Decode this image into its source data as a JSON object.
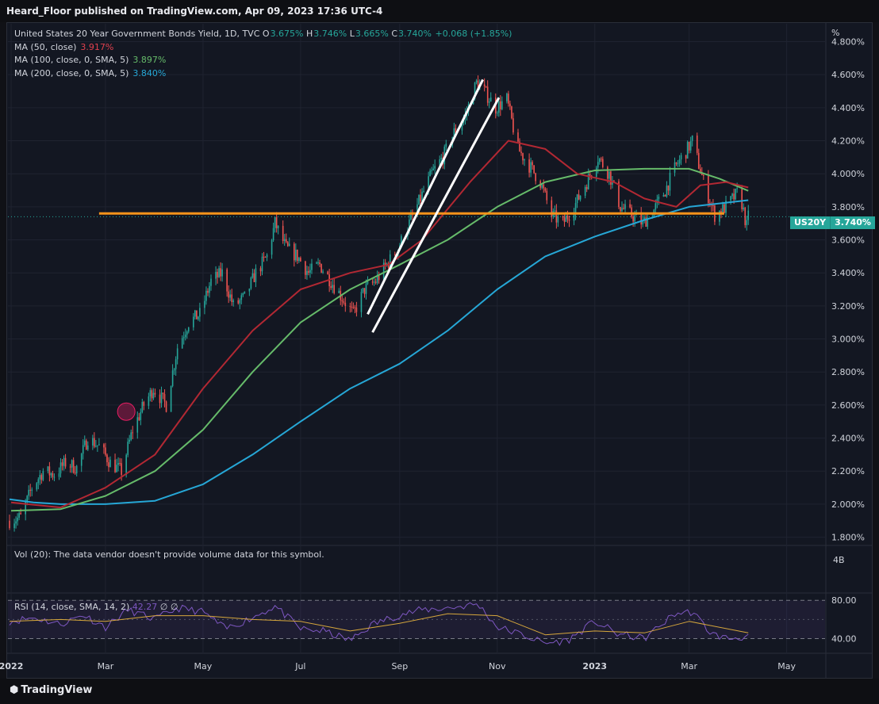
{
  "publisher_line": "Heard_Floor published on TradingView.com, Apr 09, 2023 17:36 UTC-4",
  "legend": {
    "title": "United States 20 Year Government Bonds Yield, 1D, TVC",
    "ohlc_open_label": "O",
    "ohlc_open": "3.675%",
    "ohlc_high_label": "H",
    "ohlc_high": "3.746%",
    "ohlc_low_label": "L",
    "ohlc_low": "3.665%",
    "ohlc_close_label": "C",
    "ohlc_close": "3.740%",
    "change": "+0.068 (+1.85%)",
    "ma50_label": "MA (50, close)",
    "ma50_value": "3.917%",
    "ma100_label": "MA (100, close, 0, SMA, 5)",
    "ma100_value": "3.897%",
    "ma200_label": "MA (200, close, 0, SMA, 5)",
    "ma200_value": "3.840%"
  },
  "volume_pane": {
    "label": "Vol (20): The data vendor doesn't provide volume data for this symbol.",
    "scale": "4B"
  },
  "rsi_pane": {
    "label": "RSI (14, close, SMA, 14, 2)",
    "value": "42.27",
    "extra": "∅ ∅",
    "levels": [
      "80.00",
      "40.00"
    ]
  },
  "price_badge": {
    "symbol": "US20Y",
    "price": "3.740%"
  },
  "footer": {
    "brand": "TradingView",
    "logo_icon": "tradingview-logo-icon"
  },
  "colors": {
    "up": "#26a69a",
    "down": "#ef5350",
    "ma50": "#b22833",
    "ma100": "#66bb6a",
    "ma200": "#26a7d6",
    "rsi": "#7e57c2",
    "support": "#f7931a",
    "channel": "#ffffff"
  },
  "chart_data": {
    "type": "candlestick",
    "title": "United States 20 Year Government Bonds Yield, 1D, TVC",
    "y_unit": "%",
    "y_ticks": [
      "4.800%",
      "4.600%",
      "4.400%",
      "4.200%",
      "4.000%",
      "3.800%",
      "3.600%",
      "3.400%",
      "3.200%",
      "3.000%",
      "2.800%",
      "2.600%",
      "2.400%",
      "2.200%",
      "2.000%",
      "1.800%"
    ],
    "ylim": [
      1.75,
      4.86
    ],
    "x_ticks": [
      "2022",
      "Mar",
      "May",
      "Jul",
      "Sep",
      "Nov",
      "2023",
      "Mar",
      "May"
    ],
    "x_tick_dates": [
      "2022-01-01",
      "2022-03-01",
      "2022-05-01",
      "2022-07-01",
      "2022-09-01",
      "2022-11-01",
      "2023-01-01",
      "2023-03-01",
      "2023-05-01"
    ],
    "x_range": [
      "2021-12-30",
      "2023-05-25"
    ],
    "last_close": 3.74,
    "price_path": [
      [
        "2021-12-31",
        1.9
      ],
      [
        "2022-01-07",
        1.92
      ],
      [
        "2022-01-14",
        2.1
      ],
      [
        "2022-01-21",
        2.2
      ],
      [
        "2022-01-28",
        2.18
      ],
      [
        "2022-02-04",
        2.25
      ],
      [
        "2022-02-11",
        2.22
      ],
      [
        "2022-02-18",
        2.4
      ],
      [
        "2022-02-25",
        2.35
      ],
      [
        "2022-03-04",
        2.25
      ],
      [
        "2022-03-11",
        2.2
      ],
      [
        "2022-03-18",
        2.45
      ],
      [
        "2022-03-25",
        2.6
      ],
      [
        "2022-03-31",
        2.7
      ],
      [
        "2022-04-08",
        2.6
      ],
      [
        "2022-04-15",
        2.95
      ],
      [
        "2022-04-22",
        3.1
      ],
      [
        "2022-04-29",
        3.15
      ],
      [
        "2022-05-06",
        3.35
      ],
      [
        "2022-05-13",
        3.4
      ],
      [
        "2022-05-20",
        3.2
      ],
      [
        "2022-05-27",
        3.25
      ],
      [
        "2022-06-03",
        3.4
      ],
      [
        "2022-06-10",
        3.5
      ],
      [
        "2022-06-15",
        3.7
      ],
      [
        "2022-06-22",
        3.55
      ],
      [
        "2022-06-29",
        3.5
      ],
      [
        "2022-07-06",
        3.4
      ],
      [
        "2022-07-13",
        3.45
      ],
      [
        "2022-07-20",
        3.35
      ],
      [
        "2022-07-27",
        3.25
      ],
      [
        "2022-08-03",
        3.15
      ],
      [
        "2022-08-10",
        3.3
      ],
      [
        "2022-08-17",
        3.35
      ],
      [
        "2022-08-24",
        3.45
      ],
      [
        "2022-08-31",
        3.55
      ],
      [
        "2022-09-07",
        3.7
      ],
      [
        "2022-09-14",
        3.85
      ],
      [
        "2022-09-21",
        4.0
      ],
      [
        "2022-09-28",
        4.1
      ],
      [
        "2022-10-05",
        4.25
      ],
      [
        "2022-10-12",
        4.35
      ],
      [
        "2022-10-19",
        4.55
      ],
      [
        "2022-10-24",
        4.5
      ],
      [
        "2022-10-31",
        4.4
      ],
      [
        "2022-11-07",
        4.45
      ],
      [
        "2022-11-14",
        4.15
      ],
      [
        "2022-11-21",
        4.05
      ],
      [
        "2022-11-28",
        3.95
      ],
      [
        "2022-12-05",
        3.75
      ],
      [
        "2022-12-12",
        3.7
      ],
      [
        "2022-12-19",
        3.8
      ],
      [
        "2022-12-27",
        3.95
      ],
      [
        "2023-01-03",
        4.1
      ],
      [
        "2023-01-10",
        4.0
      ],
      [
        "2023-01-17",
        3.8
      ],
      [
        "2023-01-24",
        3.75
      ],
      [
        "2023-01-31",
        3.7
      ],
      [
        "2023-02-07",
        3.78
      ],
      [
        "2023-02-14",
        3.9
      ],
      [
        "2023-02-21",
        4.05
      ],
      [
        "2023-02-28",
        4.15
      ],
      [
        "2023-03-03",
        4.2
      ],
      [
        "2023-03-10",
        3.95
      ],
      [
        "2023-03-17",
        3.75
      ],
      [
        "2023-03-24",
        3.8
      ],
      [
        "2023-03-31",
        3.88
      ],
      [
        "2023-04-03",
        3.82
      ],
      [
        "2023-04-06",
        3.68
      ],
      [
        "2023-04-07",
        3.74
      ]
    ],
    "ma50_path": [
      [
        "2022-01-01",
        2.01
      ],
      [
        "2022-02-01",
        1.98
      ],
      [
        "2022-03-01",
        2.1
      ],
      [
        "2022-04-01",
        2.3
      ],
      [
        "2022-05-01",
        2.7
      ],
      [
        "2022-06-01",
        3.05
      ],
      [
        "2022-07-01",
        3.3
      ],
      [
        "2022-08-01",
        3.4
      ],
      [
        "2022-08-25",
        3.45
      ],
      [
        "2022-09-15",
        3.6
      ],
      [
        "2022-10-15",
        3.95
      ],
      [
        "2022-11-08",
        4.2
      ],
      [
        "2022-12-01",
        4.15
      ],
      [
        "2022-12-21",
        4.0
      ],
      [
        "2023-01-13",
        3.95
      ],
      [
        "2023-02-01",
        3.85
      ],
      [
        "2023-02-21",
        3.8
      ],
      [
        "2023-03-08",
        3.93
      ],
      [
        "2023-03-24",
        3.95
      ],
      [
        "2023-04-07",
        3.917
      ]
    ],
    "ma100_path": [
      [
        "2022-01-01",
        1.96
      ],
      [
        "2022-02-01",
        1.97
      ],
      [
        "2022-03-01",
        2.05
      ],
      [
        "2022-04-01",
        2.2
      ],
      [
        "2022-05-01",
        2.45
      ],
      [
        "2022-06-01",
        2.8
      ],
      [
        "2022-07-01",
        3.1
      ],
      [
        "2022-08-01",
        3.3
      ],
      [
        "2022-09-01",
        3.45
      ],
      [
        "2022-10-01",
        3.6
      ],
      [
        "2022-11-01",
        3.8
      ],
      [
        "2022-12-01",
        3.95
      ],
      [
        "2023-01-01",
        4.02
      ],
      [
        "2023-02-01",
        4.03
      ],
      [
        "2023-03-01",
        4.03
      ],
      [
        "2023-03-20",
        3.97
      ],
      [
        "2023-04-07",
        3.897
      ]
    ],
    "ma200_path": [
      [
        "2021-12-31",
        2.03
      ],
      [
        "2022-01-15",
        2.01
      ],
      [
        "2022-02-01",
        2.0
      ],
      [
        "2022-03-01",
        2.0
      ],
      [
        "2022-04-01",
        2.02
      ],
      [
        "2022-05-01",
        2.12
      ],
      [
        "2022-06-01",
        2.3
      ],
      [
        "2022-07-01",
        2.5
      ],
      [
        "2022-08-01",
        2.7
      ],
      [
        "2022-09-01",
        2.85
      ],
      [
        "2022-10-01",
        3.05
      ],
      [
        "2022-11-01",
        3.3
      ],
      [
        "2022-12-01",
        3.5
      ],
      [
        "2023-01-01",
        3.62
      ],
      [
        "2023-02-01",
        3.72
      ],
      [
        "2023-03-01",
        3.8
      ],
      [
        "2023-04-07",
        3.84
      ]
    ],
    "rsi_path": [
      [
        "2021-12-31",
        58
      ],
      [
        "2022-01-15",
        62
      ],
      [
        "2022-02-01",
        55
      ],
      [
        "2022-02-15",
        65
      ],
      [
        "2022-03-01",
        52
      ],
      [
        "2022-03-15",
        70
      ],
      [
        "2022-04-01",
        60
      ],
      [
        "2022-04-15",
        72
      ],
      [
        "2022-05-01",
        68
      ],
      [
        "2022-05-15",
        50
      ],
      [
        "2022-06-01",
        62
      ],
      [
        "2022-06-15",
        74
      ],
      [
        "2022-07-01",
        50
      ],
      [
        "2022-07-15",
        48
      ],
      [
        "2022-08-01",
        38
      ],
      [
        "2022-08-15",
        55
      ],
      [
        "2022-09-01",
        65
      ],
      [
        "2022-09-15",
        70
      ],
      [
        "2022-10-01",
        72
      ],
      [
        "2022-10-20",
        76
      ],
      [
        "2022-11-01",
        52
      ],
      [
        "2022-11-15",
        45
      ],
      [
        "2022-12-01",
        35
      ],
      [
        "2022-12-15",
        38
      ],
      [
        "2023-01-01",
        58
      ],
      [
        "2023-01-15",
        45
      ],
      [
        "2023-02-01",
        40
      ],
      [
        "2023-02-20",
        66
      ],
      [
        "2023-03-03",
        68
      ],
      [
        "2023-03-15",
        45
      ],
      [
        "2023-03-25",
        40
      ],
      [
        "2023-04-07",
        42.27
      ]
    ],
    "rsi_ma_path": [
      [
        "2021-12-31",
        58
      ],
      [
        "2022-02-01",
        60
      ],
      [
        "2022-03-01",
        58
      ],
      [
        "2022-04-01",
        64
      ],
      [
        "2022-05-01",
        64
      ],
      [
        "2022-06-01",
        60
      ],
      [
        "2022-07-01",
        58
      ],
      [
        "2022-08-01",
        48
      ],
      [
        "2022-09-01",
        56
      ],
      [
        "2022-10-01",
        66
      ],
      [
        "2022-11-01",
        64
      ],
      [
        "2022-12-01",
        44
      ],
      [
        "2023-01-01",
        48
      ],
      [
        "2023-02-01",
        46
      ],
      [
        "2023-03-01",
        58
      ],
      [
        "2023-04-07",
        46
      ]
    ],
    "rsi_ylim": [
      28,
      86
    ],
    "annotations": {
      "support_line": {
        "value": 3.76,
        "from": "2022-02-25",
        "to": "2023-03-23"
      },
      "channel_upper": {
        "from": [
          "2022-08-12",
          3.15
        ],
        "to": [
          "2022-10-23",
          4.57
        ]
      },
      "channel_lower": {
        "from": [
          "2022-08-15",
          3.04
        ],
        "to": [
          "2022-11-02",
          4.46
        ]
      },
      "highlight_circle": {
        "date": "2022-03-14",
        "value": 2.56
      }
    }
  }
}
